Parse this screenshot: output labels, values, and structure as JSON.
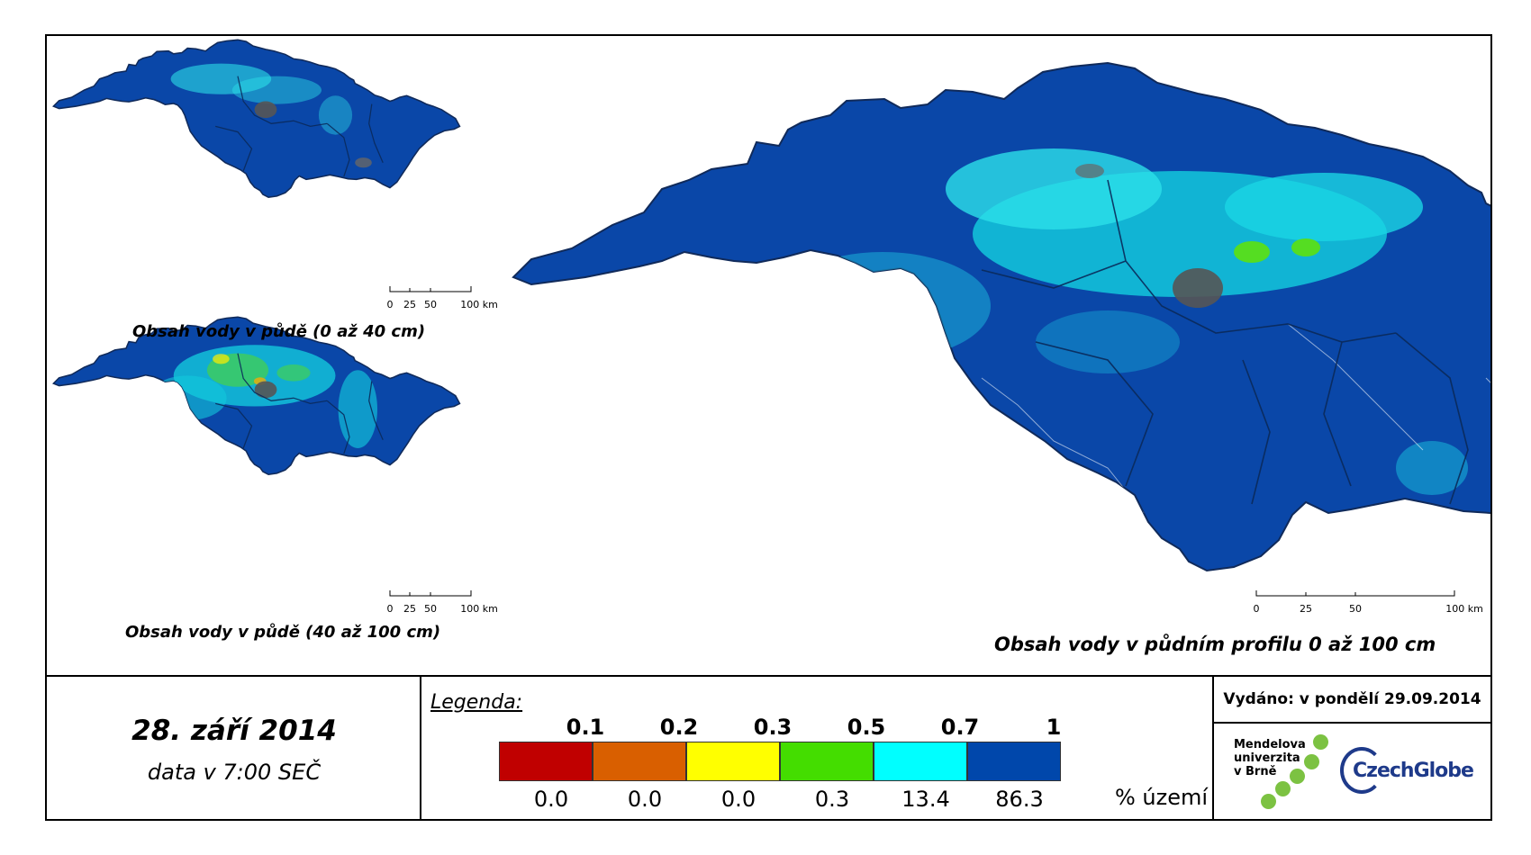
{
  "maps": {
    "small_top_caption": "Obsah vody v půdě (0 až 40 cm)",
    "small_bottom_caption": "Obsah vody v půdě (40 až 100 cm)",
    "large_caption": "Obsah vody v půdním profilu 0 až 100 cm",
    "scale_labels": [
      "0",
      "25",
      "50",
      "100 km"
    ]
  },
  "date": {
    "main": "28. září 2014",
    "sub": "data v 7:00 SEČ"
  },
  "legend": {
    "title": "Legenda:",
    "upper_bounds": [
      "0.1",
      "0.2",
      "0.3",
      "0.5",
      "0.7",
      "1"
    ],
    "colors": [
      "#c00000",
      "#d95f00",
      "#ffff00",
      "#44dd00",
      "#00ffff",
      "#0047ab"
    ],
    "percentages": [
      "0.0",
      "0.0",
      "0.0",
      "0.3",
      "13.4",
      "86.3"
    ],
    "unit": "% území"
  },
  "info": {
    "issued": "Vydáno: v pondělí 29.09.2014",
    "mendel_logo_text": [
      "Mendelova",
      "univerzita",
      "v Brně"
    ],
    "czechglobe_logo_text": "CzechGlobe"
  }
}
